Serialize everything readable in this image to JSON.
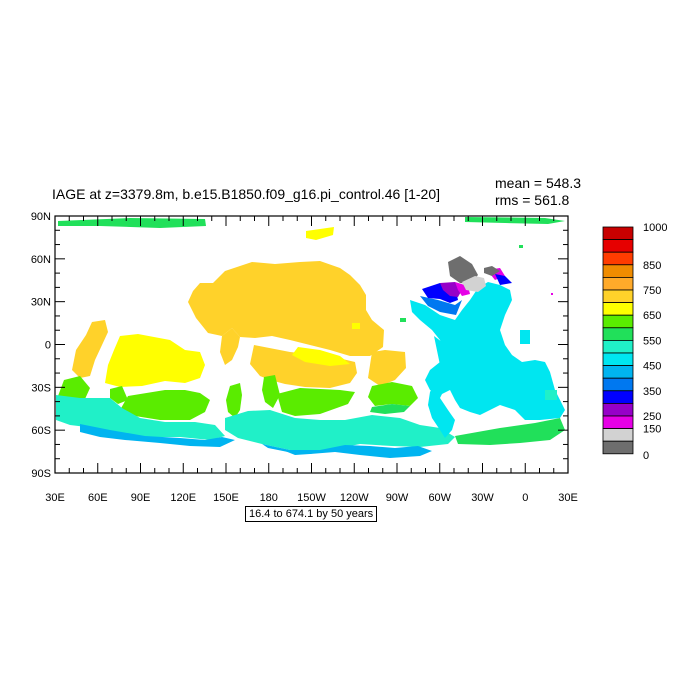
{
  "title": "IAGE at z=3379.8m, b.e15.B1850.f09_g16.pi_control.46 [1-20]",
  "stats": {
    "mean": "mean = 548.3",
    "rms": "rms = 561.8"
  },
  "subtitle": "16.4 to 674.1 by 50 years",
  "axes": {
    "y_ticks": [
      "90N",
      "60N",
      "30N",
      "0",
      "30S",
      "60S",
      "90S"
    ],
    "x_ticks": [
      "30E",
      "60E",
      "90E",
      "120E",
      "150E",
      "180",
      "150W",
      "120W",
      "90W",
      "60W",
      "30W",
      "0",
      "30E"
    ]
  },
  "colorbar": {
    "labels": [
      "1000",
      "850",
      "750",
      "650",
      "550",
      "450",
      "350",
      "250",
      "150",
      "0"
    ],
    "colors": [
      "#c80000",
      "#e60000",
      "#ff3c00",
      "#f08c00",
      "#ffaa2a",
      "#ffd22a",
      "#ffff00",
      "#5aec00",
      "#21e05a",
      "#20f0c8",
      "#00e6f0",
      "#00b4f0",
      "#0078f0",
      "#0000ff",
      "#9600c8",
      "#e600e6",
      "#d2d2d2",
      "#6e6e6e"
    ]
  },
  "map_colors": {
    "orange": "#ffd22a",
    "yellow": "#ffff00",
    "green": "#5aec00",
    "seagreen": "#21e05a",
    "aqua": "#20f0c8",
    "cyan": "#00e6f0",
    "lightblue": "#00b4f0",
    "blue": "#0078f0",
    "deepblue": "#0000ff",
    "purple": "#9600c8",
    "magenta": "#e600e6",
    "lightgray": "#d2d2d2",
    "darkgray": "#6e6e6e"
  }
}
